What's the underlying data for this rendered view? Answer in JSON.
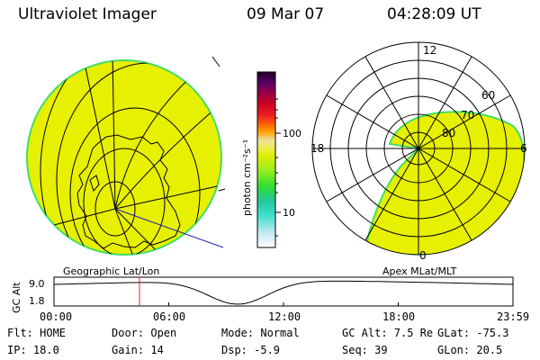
{
  "header": {
    "title": "Ultraviolet Imager",
    "date": "09 Mar 07",
    "time": "04:28:09 UT"
  },
  "colorbar": {
    "label": "photon cm⁻²s⁻¹",
    "tick_100": "100",
    "tick_10": "10",
    "scale": "log",
    "colors": [
      "#ffffff",
      "#c8e8f0",
      "#40e0d0",
      "#22c8a0",
      "#33dd33",
      "#99ee22",
      "#ddee00",
      "#eeee55",
      "#f0e0a0",
      "#ffa000",
      "#ff6600",
      "#ee2222",
      "#cc0022",
      "#990044",
      "#550066",
      "#220022"
    ]
  },
  "polar": {
    "mlt_labels": {
      "top": "12",
      "left": "18",
      "right": "6",
      "bottom": "0"
    },
    "lat_labels": [
      "60",
      "70",
      "80"
    ]
  },
  "timeline": {
    "left_label": "Geographic Lat/Lon",
    "right_label": "Apex MLat/MLT",
    "axis_label": "GC Alt",
    "y_max": "9.0",
    "y_min": "1.8",
    "ticks": [
      "00:00",
      "06:00",
      "12:00",
      "18:00",
      "23:59"
    ],
    "marker_time_hours": 4.47
  },
  "status": {
    "flt": "Flt: HOME",
    "ip": "IP: 18.0",
    "door": "Door: Open",
    "gain": "Gain: 14",
    "mode": "Mode: Normal",
    "dsp": "Dsp:   -5.9",
    "gc_alt": "GC Alt: 7.5 Re",
    "seq": "Seq: 39",
    "glat": "GLat: -75.3",
    "glon": "GLon:  20.5"
  },
  "colors": {
    "fill": "#e6f000",
    "edge": "#44dd66",
    "cursor": "#dd2222",
    "meridian": "#2222aa"
  }
}
